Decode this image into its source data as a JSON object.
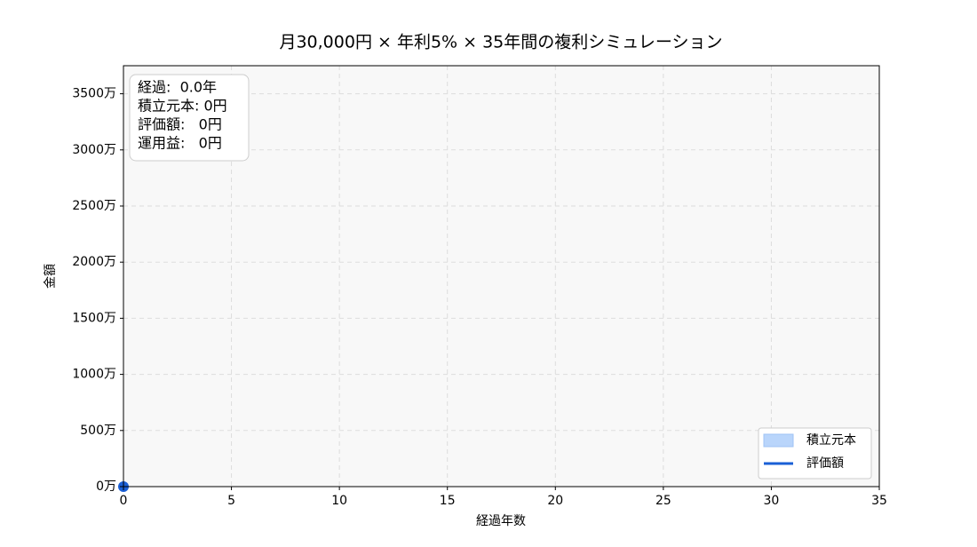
{
  "chart_data": {
    "type": "line",
    "title": "月30,000円 × 年利5% × 35年間の複利シミュレーション",
    "x_label": "経過年数",
    "y_label": "金額",
    "x": [
      0
    ],
    "series": [
      {
        "name": "積立元本",
        "color": "#b9d5fb",
        "kind": "area",
        "values": [
          0
        ]
      },
      {
        "name": "評価額",
        "color": "#1a5fd6",
        "kind": "line",
        "values": [
          0
        ]
      }
    ],
    "xlim": [
      0,
      35
    ],
    "xticks": [
      0,
      5,
      10,
      15,
      20,
      25,
      30,
      35
    ],
    "ylim": [
      0,
      37500000
    ],
    "yticks": [
      {
        "value": 0,
        "label": "0万"
      },
      {
        "value": 5000000,
        "label": "500万"
      },
      {
        "value": 10000000,
        "label": "1000万"
      },
      {
        "value": 15000000,
        "label": "1500万"
      },
      {
        "value": 20000000,
        "label": "2000万"
      },
      {
        "value": 25000000,
        "label": "2500万"
      },
      {
        "value": 30000000,
        "label": "3000万"
      },
      {
        "value": 35000000,
        "label": "3500万"
      }
    ],
    "grid": true,
    "legend": "lower right",
    "annotation": [
      "経過:  0.0年",
      "積立元本: 0円",
      "評価額:   0円",
      "運用益:   0円"
    ]
  }
}
